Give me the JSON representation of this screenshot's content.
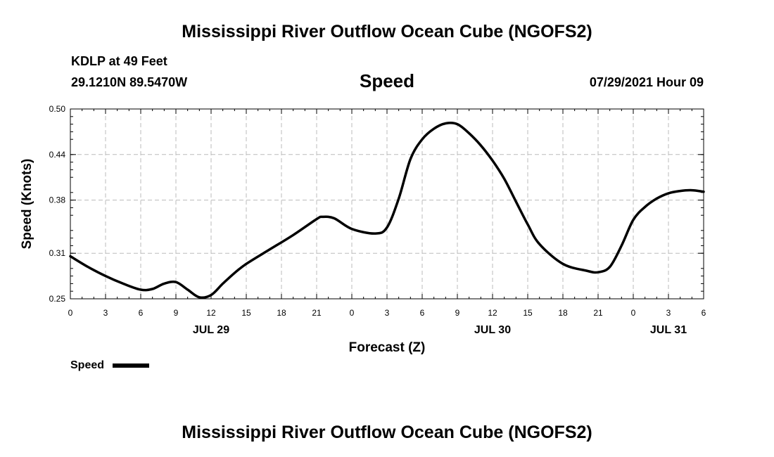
{
  "header": {
    "title": "Mississippi River Outflow Ocean Cube (NGOFS2)",
    "station": "KDLP at 49 Feet",
    "coords": "29.1210N  89.5470W",
    "datetime": "07/29/2021 Hour 09"
  },
  "footer": {
    "title": "Mississippi River Outflow Ocean Cube (NGOFS2)"
  },
  "colors": {
    "line": "#000000",
    "grid": "#bbbbbb",
    "frame": "#000000"
  },
  "chart_data": {
    "type": "line",
    "title": "Speed",
    "xlabel": "Forecast (Z)",
    "ylabel": "Speed (Knots)",
    "x_unit": "forecast hours from 2021-07-29 00Z",
    "xlim": [
      0,
      54
    ],
    "ylim": [
      0.25,
      0.5
    ],
    "grid": true,
    "legend_position": "bottom-left",
    "x_ticks": [
      0,
      3,
      6,
      9,
      12,
      15,
      18,
      21,
      24,
      27,
      30,
      33,
      36,
      39,
      42,
      45,
      48,
      51,
      54
    ],
    "x_tick_labels": [
      "0",
      "3",
      "6",
      "9",
      "12",
      "15",
      "18",
      "21",
      "0",
      "3",
      "6",
      "9",
      "12",
      "15",
      "18",
      "21",
      "0",
      "3",
      "6"
    ],
    "date_labels": [
      {
        "x": 12,
        "label": "JUL 29"
      },
      {
        "x": 36,
        "label": "JUL 30"
      },
      {
        "x": 51,
        "label": "JUL 31"
      }
    ],
    "y_ticks": [
      0.25,
      0.31,
      0.38,
      0.44,
      0.5
    ],
    "y_tick_labels": [
      "0.25",
      "0.31",
      "0.38",
      "0.44",
      "0.50"
    ],
    "series": [
      {
        "name": "Speed",
        "x": [
          0,
          1.5,
          3,
          4.5,
          6,
          7,
          8,
          9,
          10,
          11,
          12,
          13,
          14,
          15,
          17,
          19,
          21,
          21.5,
          22.5,
          24,
          26,
          27,
          28,
          29,
          30,
          31,
          32,
          33,
          34,
          35,
          36,
          37,
          38,
          39,
          40,
          42,
          44,
          45,
          46,
          47,
          48,
          49,
          50,
          51,
          52,
          53,
          54
        ],
        "y": [
          0.306,
          0.292,
          0.28,
          0.27,
          0.262,
          0.263,
          0.27,
          0.272,
          0.262,
          0.252,
          0.255,
          0.27,
          0.284,
          0.296,
          0.315,
          0.334,
          0.355,
          0.358,
          0.356,
          0.342,
          0.336,
          0.344,
          0.382,
          0.434,
          0.46,
          0.474,
          0.481,
          0.48,
          0.468,
          0.452,
          0.432,
          0.408,
          0.378,
          0.348,
          0.322,
          0.296,
          0.287,
          0.285,
          0.292,
          0.32,
          0.354,
          0.371,
          0.382,
          0.389,
          0.392,
          0.393,
          0.391
        ]
      }
    ]
  }
}
